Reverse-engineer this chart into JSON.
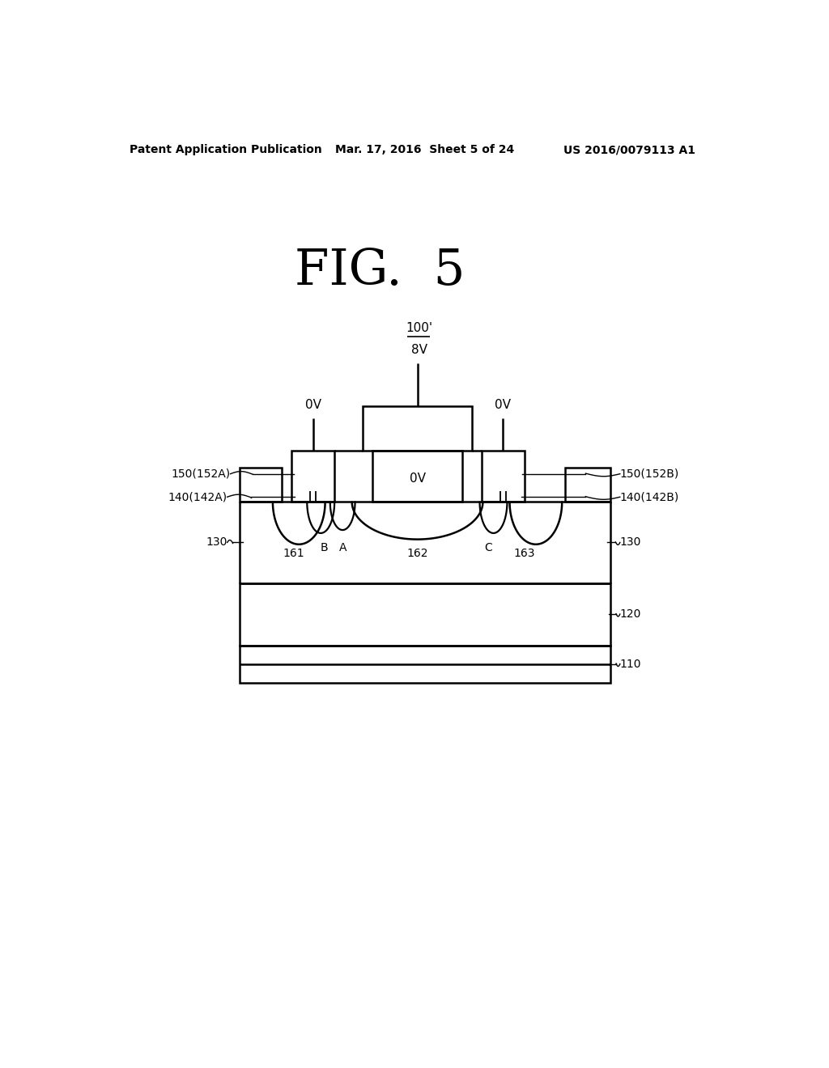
{
  "bg_color": "#ffffff",
  "line_color": "#000000",
  "header_left": "Patent Application Publication",
  "header_mid": "Mar. 17, 2016  Sheet 5 of 24",
  "header_right": "US 2016/0079113 A1",
  "fig_title": "FIG.  5",
  "label_100": "100'",
  "label_8V": "8V",
  "label_0V_left": "0V",
  "label_0V_right": "0V",
  "label_0V_center": "0V",
  "label_150A": "150(152A)",
  "label_150B": "150(152B)",
  "label_140A": "140(142A)",
  "label_140B": "140(142B)",
  "label_130_left": "130",
  "label_130_right": "130",
  "label_161": "161",
  "label_B": "B",
  "label_A": "A",
  "label_162": "162",
  "label_C": "C",
  "label_163": "163",
  "label_120": "120",
  "label_110": "110"
}
